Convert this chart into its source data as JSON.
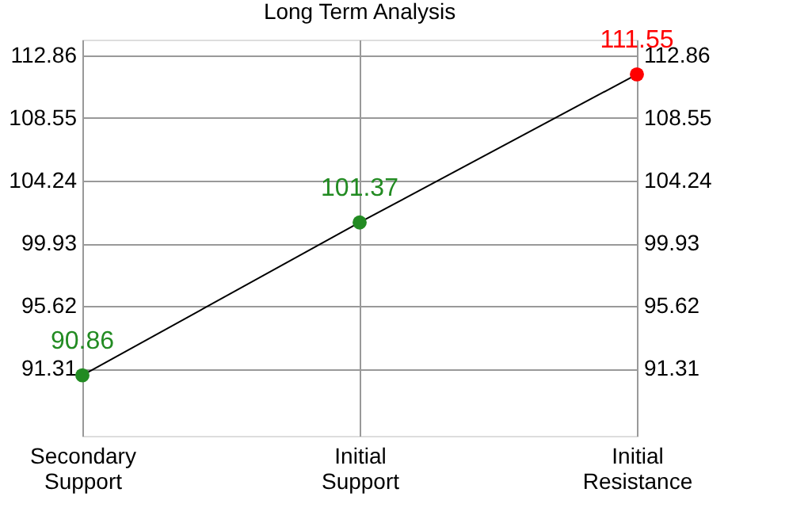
{
  "chart_data": {
    "type": "line",
    "title": "Long Term Analysis",
    "categories": [
      "Secondary Support",
      "Initial Support",
      "Initial Resistance"
    ],
    "series": [
      {
        "color": "#000000",
        "values": [
          90.86,
          101.37,
          111.55
        ],
        "colors": [
          "#228b22",
          "#228b22",
          "#ff0000"
        ]
      }
    ],
    "ylim": [
      86.7,
      113.94
    ],
    "yticks": [
      91.31,
      95.62,
      99.93,
      104.24,
      108.55,
      112.86
    ],
    "y2lim": [
      86.7,
      113.94
    ],
    "y2ticks": [
      91.31,
      95.62,
      99.93,
      104.24,
      108.55,
      112.86
    ],
    "data_labels": true,
    "grid": true,
    "marker": "circle"
  }
}
